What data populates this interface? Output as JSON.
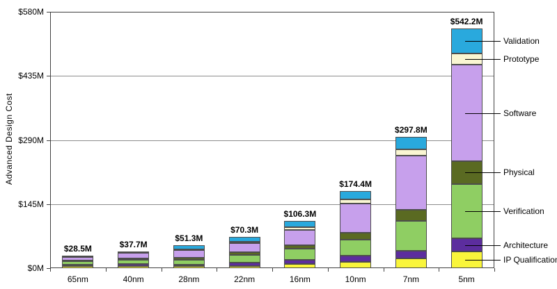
{
  "chart_data": {
    "type": "bar",
    "stacked": true,
    "title": "",
    "ylabel": "Advanced Design Cost",
    "xlabel": "",
    "categories": [
      "65nm",
      "40nm",
      "28nm",
      "22nm",
      "16nm",
      "10nm",
      "7nm",
      "5nm"
    ],
    "series_order": "bottom-to-top",
    "series": [
      {
        "name": "IP Qualification",
        "color": "#F9F53B",
        "values": [
          4.5,
          5.0,
          4.0,
          4.7,
          10.1,
          14.4,
          22.4,
          37.7
        ]
      },
      {
        "name": "Architecture",
        "color": "#5C2D9E",
        "values": [
          4.0,
          4.8,
          3.5,
          7.8,
          8.4,
          14.4,
          17.6,
          29.9
        ]
      },
      {
        "name": "Verification",
        "color": "#8FCE63",
        "values": [
          7.0,
          9.5,
          12.0,
          17.2,
          25.3,
          35.2,
          67.2,
          122.6
        ]
      },
      {
        "name": "Physical",
        "color": "#5A6A22",
        "values": [
          2.3,
          3.0,
          4.0,
          6.3,
          8.4,
          16.0,
          25.6,
          51.9
        ]
      },
      {
        "name": "Software",
        "color": "#C7A0EC",
        "values": [
          9.0,
          12.5,
          18.0,
          20.3,
          33.9,
          65.6,
          121.8,
          218.4
        ]
      },
      {
        "name": "Prototype",
        "color": "#FAF6D2",
        "values": [
          0.5,
          0.9,
          1.3,
          3.1,
          6.7,
          9.6,
          14.4,
          25.1
        ]
      },
      {
        "name": "Validation",
        "color": "#29A9DD",
        "values": [
          1.2,
          2.0,
          8.5,
          10.9,
          13.5,
          19.2,
          28.8,
          56.6
        ]
      }
    ],
    "totals": [
      "$28.5M",
      "$37.7M",
      "$51.3M",
      "$70.3M",
      "$106.3M",
      "$174.4M",
      "$297.8M",
      "$542.2M"
    ],
    "yticks": [
      {
        "value": 0,
        "label": "$0M"
      },
      {
        "value": 145,
        "label": "$145M"
      },
      {
        "value": 290,
        "label": "$290M"
      },
      {
        "value": 435,
        "label": "$435M"
      },
      {
        "value": 580,
        "label": "$580M"
      }
    ],
    "ylim": [
      0,
      580
    ],
    "grid": "horizontal",
    "legend_position": "right-callouts",
    "legend_labels_top_to_bottom": [
      "Validation",
      "Prototype",
      "Software",
      "Physical",
      "Verification",
      "Architecture",
      "IP Qualification"
    ]
  }
}
